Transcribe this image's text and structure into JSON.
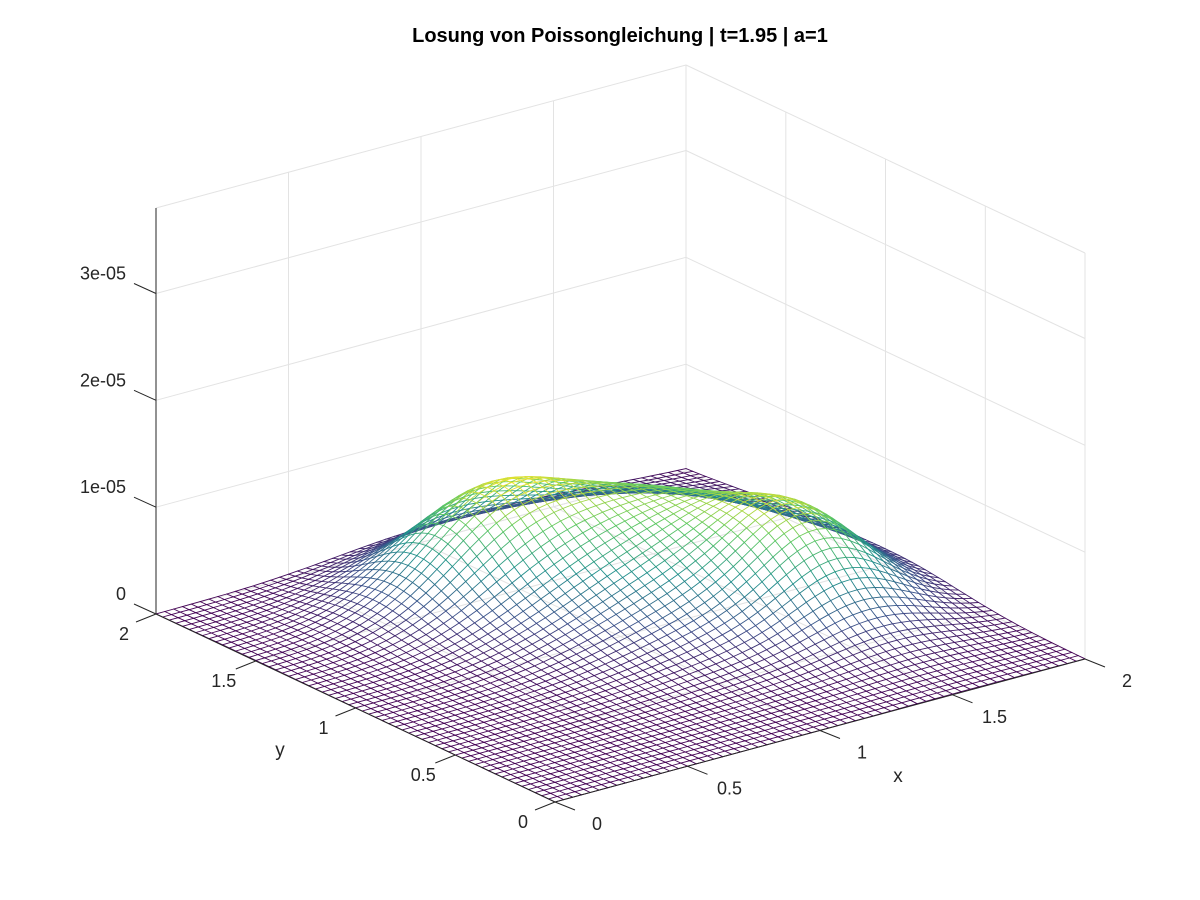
{
  "chart_data": {
    "type": "surface-mesh",
    "title": "Losung von Poissongleichung | t=1.95 | a=1",
    "xlabel": "x",
    "ylabel": "y",
    "zlabel": "",
    "xlim": [
      0,
      2
    ],
    "ylim": [
      0,
      2
    ],
    "zlim": [
      0,
      3.8e-05
    ],
    "x_ticks": [
      0,
      0.5,
      1,
      1.5,
      2
    ],
    "x_tick_labels": [
      "0",
      "0.5",
      "1",
      "1.5",
      "2"
    ],
    "y_ticks": [
      0,
      0.5,
      1,
      1.5,
      2
    ],
    "y_tick_labels": [
      "0",
      "0.5",
      "1",
      "1.5",
      "2"
    ],
    "z_ticks": [
      0,
      1e-05,
      2e-05,
      3e-05
    ],
    "z_tick_labels": [
      "0",
      "1e-05",
      "2e-05",
      "3e-05"
    ],
    "grid": true,
    "colormap": "viridis",
    "colors": [
      "#440154",
      "#3b528b",
      "#21918c",
      "#5ec962",
      "#fde725"
    ],
    "mesh_resolution": 60,
    "peaks": [
      {
        "x": 0.88,
        "y": 1.55,
        "z": 1.05e-05
      },
      {
        "x": 1.58,
        "y": 0.85,
        "z": 1.05e-05
      }
    ],
    "ridge_z": 8e-06
  }
}
